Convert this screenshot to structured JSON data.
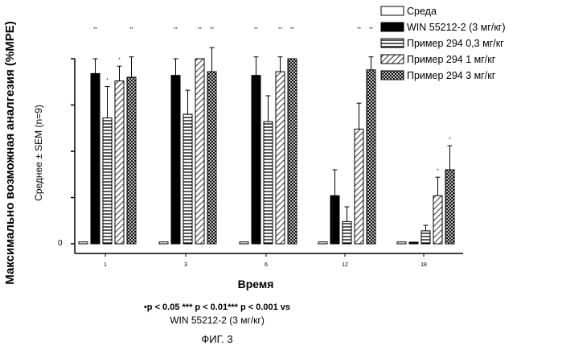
{
  "chart_data": {
    "type": "bar",
    "title": "",
    "xlabel": "Время",
    "ylabel": "Максимально возможная аналгезия (%MPE)",
    "ylabel_sub": "Среднее ± SEM (n=9)",
    "y_tick_label": "0",
    "ylim": [
      0,
      100
    ],
    "categories": [
      "1",
      "3",
      "6",
      "12",
      "18"
    ],
    "legend_position": "top-right",
    "series": [
      {
        "name": "Среда",
        "pattern": "open",
        "values": [
          1,
          1,
          1,
          1,
          1
        ],
        "errors": [
          0,
          0,
          0,
          0,
          0
        ],
        "sig": [
          "",
          "",
          "",
          "",
          ""
        ]
      },
      {
        "name": "WIN 55212-2 (3 мг/кг)",
        "pattern": "solid",
        "values": [
          92,
          91,
          91,
          26,
          0
        ],
        "errors": [
          8,
          9,
          10,
          14,
          0
        ],
        "sig": [
          "**",
          "**",
          "**",
          "",
          ""
        ]
      },
      {
        "name": "Пример 294 0,3 мг/кг",
        "pattern": "horizontal-lines",
        "values": [
          68,
          70,
          66,
          12,
          7
        ],
        "errors": [
          17,
          13,
          14,
          8,
          3
        ],
        "sig": [
          "*",
          "",
          "",
          "",
          ""
        ]
      },
      {
        "name": "Пример 294 1 мг/кг",
        "pattern": "diagonal-lines",
        "values": [
          88,
          100,
          93,
          62,
          26
        ],
        "errors": [
          8,
          0,
          8,
          14,
          10
        ],
        "sig": [
          "*",
          "**",
          "**",
          "**",
          "*"
        ]
      },
      {
        "name": "Пример 294 3 мг/кг",
        "pattern": "crosshatch",
        "values": [
          90,
          93,
          100,
          94,
          40
        ],
        "errors": [
          11,
          13,
          0,
          7,
          13
        ],
        "sig": [
          "**",
          "**",
          "**",
          "**",
          "*"
        ]
      }
    ],
    "colors": {
      "ink": "#000000",
      "background": "#ffffff"
    }
  },
  "footnote": {
    "line1": "•p < 0.05 *** p < 0.01*** p < 0.001 vs",
    "line2": "WIN 55212-2 (3 мг/кг)"
  },
  "figure_label": "ФИГ. 3"
}
